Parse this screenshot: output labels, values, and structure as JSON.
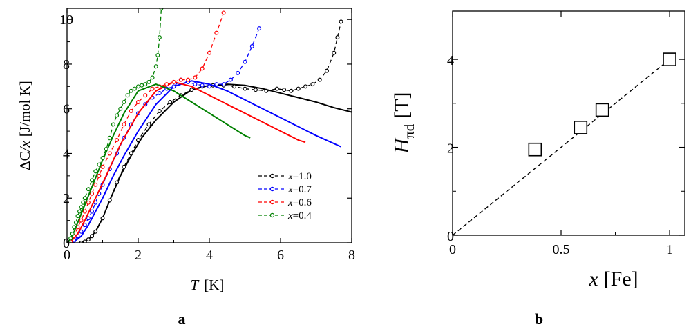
{
  "figure": {
    "panel_a_label": "a",
    "panel_b_label": "b"
  },
  "chart_data": [
    {
      "type": "line",
      "panel": "a",
      "title": "",
      "xlabel": {
        "var": "T",
        "unit": "[K]"
      },
      "ylabel": {
        "prefix": "ΔC",
        "var": "/x",
        "unit": "[J/mol K]"
      },
      "xlim": [
        0,
        8
      ],
      "ylim": [
        0,
        10.5
      ],
      "xticks": [
        "0",
        "2",
        "4",
        "6",
        "8"
      ],
      "yticks": [
        "0",
        "2",
        "4",
        "6",
        "8",
        "10"
      ],
      "legend_position": "bottom-right",
      "series": [
        {
          "name": "x=1.0",
          "var": "x",
          "value": "=1.0",
          "color": "#000000",
          "data_x": [
            0.4,
            0.5,
            0.6,
            0.7,
            0.8,
            1.0,
            1.2,
            1.4,
            1.6,
            1.8,
            2.0,
            2.3,
            2.6,
            2.9,
            3.2,
            3.5,
            3.8,
            4.1,
            4.4,
            4.7,
            5.0,
            5.3,
            5.6,
            5.9,
            6.1,
            6.3,
            6.5,
            6.7,
            6.9,
            7.1,
            7.3,
            7.5,
            7.6,
            7.7
          ],
          "data_y": [
            0.0,
            0.05,
            0.15,
            0.3,
            0.5,
            1.1,
            1.9,
            2.7,
            3.4,
            4.0,
            4.6,
            5.3,
            5.9,
            6.3,
            6.6,
            6.85,
            7.0,
            7.05,
            7.05,
            7.0,
            6.9,
            6.85,
            6.8,
            6.9,
            6.85,
            6.8,
            6.9,
            7.0,
            7.1,
            7.3,
            7.7,
            8.5,
            9.2,
            9.9
          ],
          "fit_x": [
            0.4,
            0.6,
            0.8,
            1.0,
            1.2,
            1.5,
            1.8,
            2.1,
            2.5,
            3.0,
            3.5,
            4.0,
            4.5,
            5.0,
            5.5,
            6.0,
            6.5,
            7.0,
            7.5,
            8.0
          ],
          "fit_y": [
            0.0,
            0.15,
            0.5,
            1.1,
            1.9,
            3.0,
            3.9,
            4.7,
            5.5,
            6.3,
            6.85,
            7.05,
            7.1,
            7.05,
            6.9,
            6.7,
            6.5,
            6.3,
            6.05,
            5.85
          ]
        },
        {
          "name": "x=0.7",
          "var": "x",
          "value": "=0.7",
          "color": "#0000ff",
          "data_x": [
            0.1,
            0.2,
            0.3,
            0.4,
            0.5,
            0.6,
            0.7,
            0.8,
            0.9,
            1.0,
            1.2,
            1.4,
            1.6,
            1.8,
            2.0,
            2.2,
            2.4,
            2.6,
            2.8,
            3.0,
            3.2,
            3.4,
            3.6,
            3.8,
            4.0,
            4.2,
            4.4,
            4.6,
            4.8,
            5.0,
            5.2,
            5.4
          ],
          "data_y": [
            0.0,
            0.1,
            0.3,
            0.5,
            0.8,
            1.1,
            1.4,
            1.8,
            2.2,
            2.6,
            3.3,
            4.0,
            4.7,
            5.3,
            5.8,
            6.2,
            6.5,
            6.7,
            6.9,
            7.0,
            7.3,
            7.2,
            7.1,
            7.05,
            7.0,
            7.1,
            7.1,
            7.3,
            7.6,
            8.1,
            8.8,
            9.6
          ],
          "fit_x": [
            0.2,
            0.4,
            0.6,
            0.8,
            1.0,
            1.3,
            1.6,
            2.0,
            2.5,
            3.0,
            3.5,
            4.0,
            4.5,
            5.0,
            5.5,
            6.0,
            6.5,
            7.0,
            7.7
          ],
          "fit_y": [
            0.05,
            0.3,
            0.8,
            1.4,
            2.0,
            3.0,
            3.9,
            5.0,
            6.2,
            7.0,
            7.25,
            7.1,
            6.8,
            6.4,
            6.0,
            5.6,
            5.2,
            4.8,
            4.3
          ]
        },
        {
          "name": "x=0.6",
          "var": "x",
          "value": "=0.6",
          "color": "#ff0000",
          "data_x": [
            0.05,
            0.1,
            0.2,
            0.3,
            0.4,
            0.5,
            0.6,
            0.7,
            0.8,
            0.9,
            1.0,
            1.2,
            1.4,
            1.6,
            1.8,
            2.0,
            2.2,
            2.4,
            2.6,
            2.8,
            3.0,
            3.2,
            3.4,
            3.6,
            3.8,
            4.0,
            4.2,
            4.4
          ],
          "data_y": [
            0.0,
            0.05,
            0.3,
            0.7,
            1.0,
            1.4,
            1.8,
            2.2,
            2.6,
            3.0,
            3.4,
            4.0,
            4.6,
            5.3,
            5.9,
            6.3,
            6.6,
            6.9,
            7.0,
            7.1,
            7.2,
            7.3,
            7.3,
            7.4,
            7.8,
            8.5,
            9.4,
            10.3
          ],
          "fit_x": [
            0.1,
            0.3,
            0.5,
            0.8,
            1.1,
            1.5,
            2.0,
            2.5,
            3.0,
            3.5,
            4.0,
            4.5,
            5.0,
            5.5,
            6.0,
            6.5,
            6.7
          ],
          "fit_y": [
            0.05,
            0.4,
            1.0,
            2.0,
            3.0,
            4.4,
            5.8,
            6.8,
            7.2,
            7.0,
            6.6,
            6.2,
            5.8,
            5.4,
            5.0,
            4.6,
            4.5
          ]
        },
        {
          "name": "x=0.4",
          "var": "x",
          "value": "=0.4",
          "color": "#008000",
          "data_x": [
            0.05,
            0.1,
            0.15,
            0.2,
            0.25,
            0.3,
            0.35,
            0.4,
            0.45,
            0.5,
            0.6,
            0.7,
            0.8,
            0.9,
            1.0,
            1.1,
            1.2,
            1.3,
            1.4,
            1.5,
            1.6,
            1.7,
            1.8,
            1.9,
            2.0,
            2.1,
            2.2,
            2.3,
            2.4,
            2.5,
            2.55,
            2.6,
            2.65
          ],
          "data_y": [
            0.0,
            0.2,
            0.4,
            0.7,
            0.9,
            1.2,
            1.4,
            1.6,
            1.8,
            2.0,
            2.4,
            2.8,
            3.2,
            3.5,
            3.8,
            4.2,
            4.7,
            5.3,
            5.7,
            6.0,
            6.3,
            6.6,
            6.8,
            6.9,
            7.0,
            7.05,
            7.1,
            7.2,
            7.4,
            7.9,
            8.4,
            9.2,
            10.5
          ],
          "fit_x": [
            0.05,
            0.2,
            0.4,
            0.6,
            0.8,
            1.0,
            1.3,
            1.6,
            2.0,
            2.5,
            3.0,
            3.5,
            4.0,
            4.5,
            5.0,
            5.15
          ],
          "fit_y": [
            0.05,
            0.5,
            1.3,
            2.1,
            2.9,
            3.7,
            4.8,
            5.8,
            6.8,
            7.1,
            6.8,
            6.3,
            5.8,
            5.3,
            4.8,
            4.7
          ]
        }
      ]
    },
    {
      "type": "scatter",
      "panel": "b",
      "title": "",
      "xlabel": {
        "var": "x",
        "unit": "[Fe]"
      },
      "ylabel": {
        "var": "H",
        "subscript": "πd",
        "unit": "[T]"
      },
      "xlim": [
        0,
        1.07
      ],
      "ylim": [
        0,
        5.1
      ],
      "xticks": [
        "0",
        "0.5",
        "1"
      ],
      "yticks": [
        "0",
        "2",
        "4"
      ],
      "series": [
        {
          "name": "Hπd",
          "marker": "open-square",
          "x": [
            0.38,
            0.59,
            0.69,
            1.0
          ],
          "y": [
            1.95,
            2.45,
            2.85,
            4.0
          ]
        }
      ],
      "fit_line": {
        "style": "dashed",
        "x": [
          0,
          1.0
        ],
        "y": [
          0,
          4.0
        ]
      }
    }
  ]
}
